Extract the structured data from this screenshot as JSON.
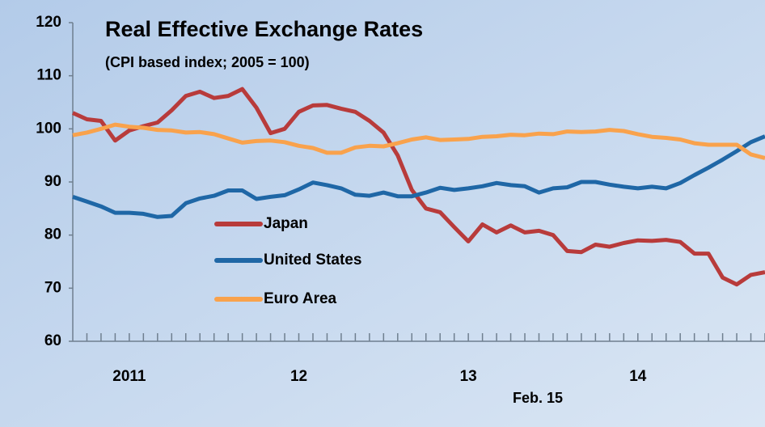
{
  "chart_data": {
    "type": "line",
    "title": "Real Effective Exchange Rates",
    "subtitle": "(CPI based index; 2005 = 100)",
    "annotation": "Feb. 15",
    "categories": [
      null,
      null,
      null,
      null,
      "2011",
      null,
      null,
      null,
      null,
      null,
      null,
      null,
      null,
      null,
      null,
      null,
      "12",
      null,
      null,
      null,
      null,
      null,
      null,
      null,
      null,
      null,
      null,
      null,
      "13",
      null,
      null,
      null,
      null,
      null,
      null,
      null,
      null,
      null,
      null,
      null,
      "14",
      null,
      null,
      null,
      null,
      null,
      null,
      null,
      null,
      null
    ],
    "series": [
      {
        "name": "Japan",
        "color": "#b83b3b",
        "values": [
          103,
          101.8,
          101.5,
          97.8,
          99.7,
          100.5,
          101.2,
          103.5,
          106.2,
          107,
          105.8,
          106.2,
          107.5,
          104,
          99.2,
          100,
          103.2,
          104.4,
          104.5,
          103.8,
          103.2,
          101.5,
          99.3,
          95,
          88.5,
          85,
          84.3,
          81.5,
          78.8,
          82,
          80.5,
          81.8,
          80.5,
          80.8,
          80,
          77,
          76.8,
          78.2,
          77.8,
          78.5,
          79,
          78.9,
          79.1,
          78.7,
          76.5,
          76.5,
          72,
          70.7,
          72.5,
          73
        ]
      },
      {
        "name": "United States",
        "color": "#1f67a6",
        "values": [
          87.2,
          86.3,
          85.4,
          84.2,
          84.2,
          84,
          83.4,
          83.6,
          86,
          86.9,
          87.4,
          88.4,
          88.4,
          86.8,
          87.2,
          87.5,
          88.6,
          89.9,
          89.4,
          88.8,
          87.6,
          87.4,
          88,
          87.3,
          87.3,
          88,
          88.9,
          88.5,
          88.8,
          89.2,
          89.8,
          89.4,
          89.2,
          88,
          88.8,
          89,
          90,
          90,
          89.5,
          89.1,
          88.8,
          89.1,
          88.8,
          89.8,
          91.3,
          92.7,
          94.2,
          95.8,
          97.5,
          98.6
        ]
      },
      {
        "name": "Euro Area",
        "color": "#f9a24c",
        "values": [
          98.8,
          99.3,
          100,
          100.8,
          100.4,
          100.2,
          99.8,
          99.7,
          99.3,
          99.4,
          99,
          98.2,
          97.4,
          97.7,
          97.8,
          97.5,
          96.8,
          96.4,
          95.5,
          95.5,
          96.5,
          96.8,
          96.7,
          97.3,
          98,
          98.4,
          97.9,
          98,
          98.1,
          98.5,
          98.6,
          98.9,
          98.8,
          99.1,
          99,
          99.5,
          99.4,
          99.5,
          99.8,
          99.6,
          99,
          98.5,
          98.3,
          98,
          97.3,
          97,
          97,
          97,
          95.2,
          94.5
        ]
      }
    ],
    "ylim": [
      60,
      120
    ],
    "yticks": [
      60,
      70,
      80,
      90,
      100,
      110,
      120
    ],
    "grid": false
  }
}
